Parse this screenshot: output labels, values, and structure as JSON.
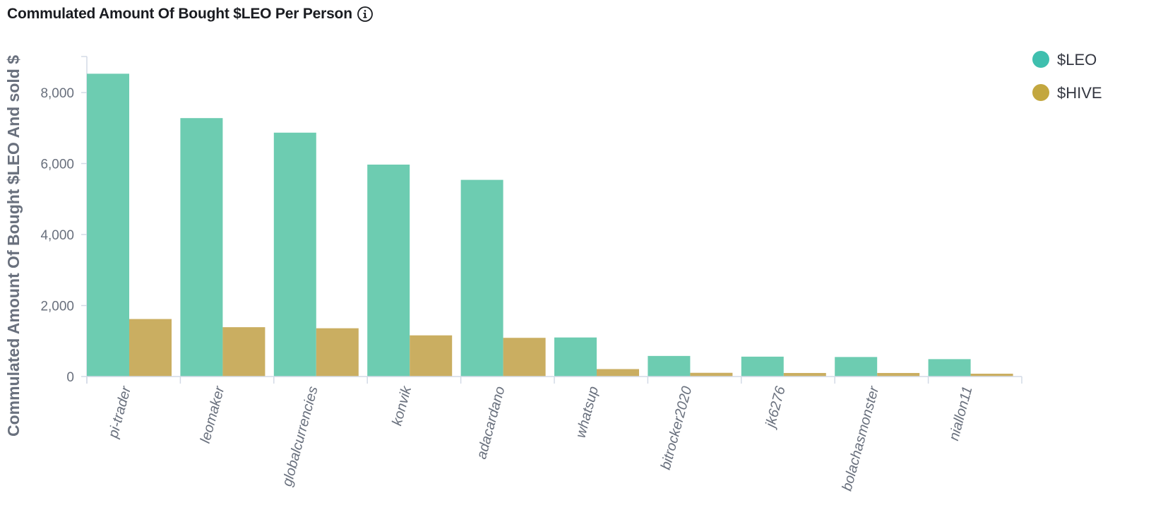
{
  "chart_data": {
    "type": "bar",
    "title": "Commulated Amount Of Bought $LEO Per Person",
    "ylabel": "Commulated Amount Of Bought $LEO And sold $",
    "xlabel": "",
    "categories": [
      "pi-trader",
      "leomaker",
      "globalcurrencies",
      "konvik",
      "adacardano",
      "whatsup",
      "bitrocker2020",
      "jk6276",
      "bolachasmonster",
      "niallon11"
    ],
    "series": [
      {
        "name": "$LEO",
        "color": "#6dccb1",
        "values": [
          8530,
          7280,
          6870,
          5970,
          5540,
          1100,
          580,
          560,
          550,
          490
        ]
      },
      {
        "name": "$HIVE",
        "color": "#caae61",
        "values": [
          1620,
          1390,
          1360,
          1160,
          1090,
          210,
          105,
          100,
          100,
          80
        ]
      }
    ],
    "ylim": [
      0,
      9000
    ],
    "yticks": [
      0,
      2000,
      4000,
      6000,
      8000
    ],
    "ytick_labels": [
      "0",
      "2,000",
      "4,000",
      "6,000",
      "8,000"
    ],
    "legend_position": "top-right",
    "legend_dot_colors": [
      "#3fbfae",
      "#c3a73f"
    ],
    "grid": false
  }
}
